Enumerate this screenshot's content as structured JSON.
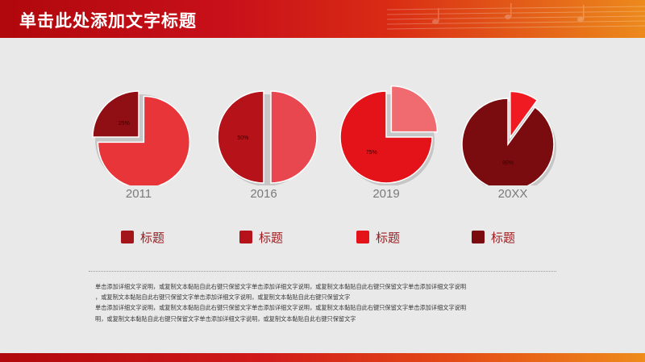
{
  "header": {
    "title": "单击此处添加文字标题"
  },
  "chart_data": {
    "type": "pie",
    "charts": [
      {
        "category": "2011",
        "percent_label": "25%",
        "value": 25,
        "color": "#8f0f14",
        "rest_color": "#e8353a"
      },
      {
        "category": "2016",
        "percent_label": "50%",
        "value": 50,
        "color": "#b5121a",
        "rest_color": "#e8474f"
      },
      {
        "category": "2019",
        "percent_label": "75%",
        "value": 75,
        "color": "#e4131a",
        "rest_color": "#ef6b6f"
      },
      {
        "category": "20XX",
        "percent_label": "90%",
        "value": 90,
        "color": "#7a0c10",
        "rest_color": "#f01a22"
      }
    ],
    "legend": [
      {
        "label": "标题",
        "color": "#a3151b"
      },
      {
        "label": "标题",
        "color": "#b5121a"
      },
      {
        "label": "标题",
        "color": "#e4131a"
      },
      {
        "label": "标题",
        "color": "#7a0c10"
      }
    ]
  },
  "description": {
    "lines": [
      "单击添加详细文字说明，或复制文本黏贴自此右键只保留文字单击添加详细文字说明，或复制文本黏贴自此右键只保留文字单击添加详细文字说明",
      "，或复制文本黏贴自此右键只保留文字单击添加详细文字说明，或复制文本黏贴自此右键只保留文字",
      "单击添加详细文字说明，或复制文本黏贴自此右键只保留文字单击添加详细文字说明，或复制文本黏贴自此右键只保留文字单击添加详细文字说明",
      "明，或复制文本黏贴自此右键只保留文字单击添加详细文字说明，或复制文本黏贴自此右键只保留文字"
    ]
  }
}
